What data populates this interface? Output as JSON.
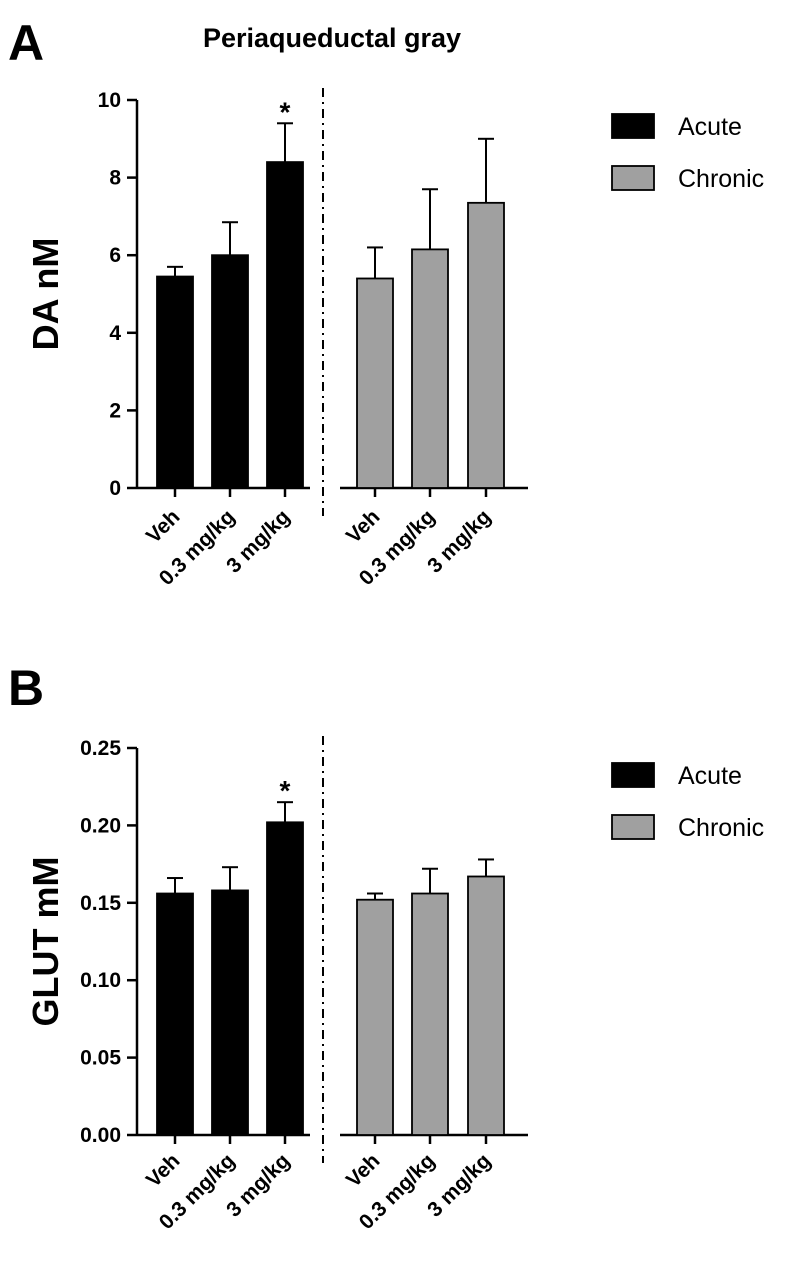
{
  "figure": {
    "title": "Periaqueductal gray"
  },
  "chart_data": [
    {
      "panel": "A",
      "type": "bar",
      "title": "Periaqueductal gray",
      "ylabel": "DA nM",
      "xlabel": "",
      "ylim": [
        0,
        10
      ],
      "yticks": [
        "0",
        "2",
        "4",
        "6",
        "8",
        "10"
      ],
      "ytick_values": [
        0,
        2,
        4,
        6,
        8,
        10
      ],
      "legend_placement": "top-right",
      "groups": [
        {
          "name": "Acute",
          "color": "#000000",
          "categories": [
            "Veh",
            "0.3 mg/kg",
            "3 mg/kg"
          ],
          "values": [
            5.45,
            6.0,
            8.4
          ],
          "errors": [
            0.25,
            0.85,
            1.0
          ],
          "annotations": [
            "",
            "",
            "*"
          ]
        },
        {
          "name": "Chronic",
          "color": "#a0a0a0",
          "categories": [
            "Veh",
            "0.3 mg/kg",
            "3 mg/kg"
          ],
          "values": [
            5.4,
            6.15,
            7.35
          ],
          "errors": [
            0.8,
            1.55,
            1.65
          ],
          "annotations": [
            "",
            "",
            ""
          ]
        }
      ]
    },
    {
      "panel": "B",
      "type": "bar",
      "title": "",
      "ylabel": "GLUT mM",
      "xlabel": "",
      "ylim": [
        0,
        0.25
      ],
      "yticks": [
        "0.00",
        "0.05",
        "0.10",
        "0.15",
        "0.20",
        "0.25"
      ],
      "ytick_values": [
        0,
        0.05,
        0.1,
        0.15,
        0.2,
        0.25
      ],
      "legend_placement": "top-right",
      "groups": [
        {
          "name": "Acute",
          "color": "#000000",
          "categories": [
            "Veh",
            "0.3 mg/kg",
            "3 mg/kg"
          ],
          "values": [
            0.156,
            0.158,
            0.202
          ],
          "errors": [
            0.01,
            0.015,
            0.013
          ],
          "annotations": [
            "",
            "",
            "*"
          ]
        },
        {
          "name": "Chronic",
          "color": "#a0a0a0",
          "categories": [
            "Veh",
            "0.3 mg/kg",
            "3 mg/kg"
          ],
          "values": [
            0.152,
            0.156,
            0.167
          ],
          "errors": [
            0.004,
            0.016,
            0.011
          ],
          "annotations": [
            "",
            "",
            ""
          ]
        }
      ]
    }
  ]
}
